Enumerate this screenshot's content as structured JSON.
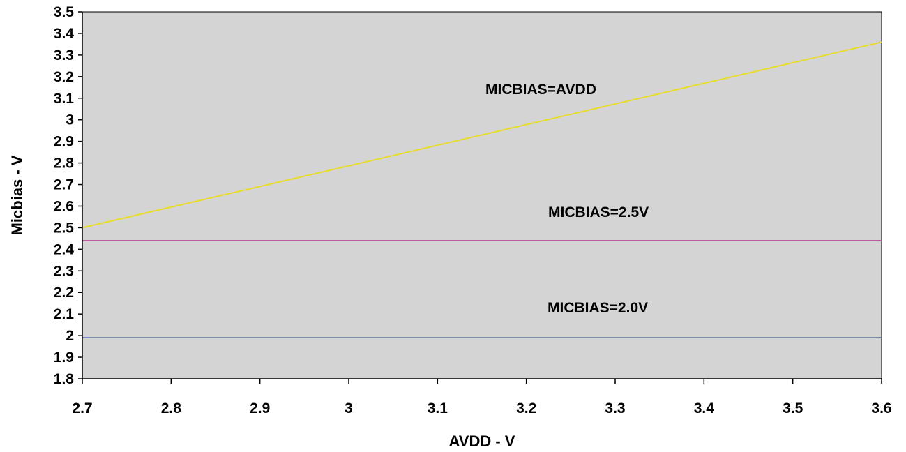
{
  "chart_data": {
    "type": "line",
    "title": "",
    "xlabel": "AVDD - V",
    "ylabel": "Micbias - V",
    "xlim": [
      2.7,
      3.6
    ],
    "ylim": [
      1.8,
      3.5
    ],
    "xticks": [
      "2.7",
      "2.8",
      "2.9",
      "3",
      "3.1",
      "3.2",
      "3.3",
      "3.4",
      "3.5",
      "3.6"
    ],
    "yticks": [
      "1.8",
      "1.9",
      "2",
      "2.1",
      "2.2",
      "2.3",
      "2.4",
      "2.5",
      "2.6",
      "2.7",
      "2.8",
      "2.9",
      "3",
      "3.1",
      "3.2",
      "3.3",
      "3.4",
      "3.5"
    ],
    "grid": false,
    "legend": "none",
    "plot_background": "#d4d4d4",
    "series": [
      {
        "annotation": "MICBIAS=AVDD",
        "color": "#e8dc2a",
        "x": [
          2.7,
          3.6
        ],
        "y": [
          2.5,
          3.36
        ]
      },
      {
        "annotation": "MICBIAS=2.5V",
        "color": "#b03a8a",
        "x": [
          2.7,
          3.6
        ],
        "y": [
          2.44,
          2.44
        ]
      },
      {
        "annotation": "MICBIAS=2.0V",
        "color": "#2e3b9c",
        "x": [
          2.7,
          3.6
        ],
        "y": [
          1.99,
          1.99
        ]
      }
    ]
  }
}
